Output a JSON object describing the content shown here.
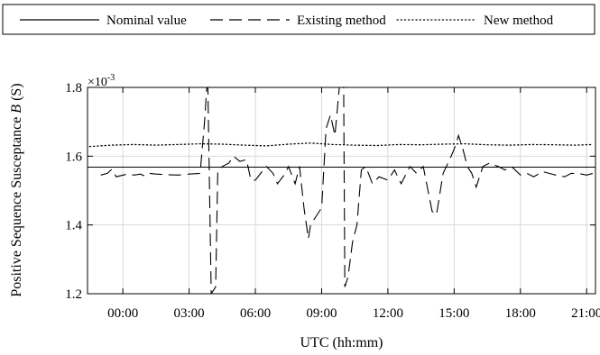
{
  "chart_data": {
    "type": "line",
    "xlabel": "UTC (hh:mm)",
    "ylabel": "Positive Sequence Susceptance B (S)",
    "ylabel_prefix": "Positive Sequence Susceptance ",
    "ylabel_var": "B",
    "ylabel_suffix": " (S)",
    "y_multiplier": "×10",
    "y_multiplier_exp": "-3",
    "xlim": [
      -1.6,
      21.4
    ],
    "ylim": [
      1.2,
      1.8
    ],
    "x_ticks": [
      0,
      3,
      6,
      9,
      12,
      15,
      18,
      21
    ],
    "x_tick_labels": [
      "00:00",
      "03:00",
      "06:00",
      "09:00",
      "12:00",
      "15:00",
      "18:00",
      "21:00"
    ],
    "y_ticks": [
      1.2,
      1.4,
      1.6,
      1.8
    ],
    "y_tick_labels": [
      "1.2",
      "1.4",
      "1.6",
      "1.8"
    ],
    "grid": true,
    "legend_placement": "top",
    "series": [
      {
        "name": "Nominal value",
        "style": "solid",
        "color": "#000000",
        "x": [
          -1.6,
          21.4
        ],
        "y": [
          1.568,
          1.568
        ]
      },
      {
        "name": "Existing method",
        "style": "dashed",
        "color": "#000000",
        "x": [
          -1.0,
          -0.7,
          -0.5,
          -0.3,
          0.2,
          0.5,
          0.8,
          1.0,
          1.2,
          1.5,
          2.0,
          2.5,
          3.0,
          3.5,
          3.7,
          3.8,
          3.85,
          4.0,
          4.2,
          4.3,
          4.5,
          4.8,
          5.0,
          5.3,
          5.6,
          5.8,
          6.0,
          6.3,
          6.5,
          6.8,
          7.0,
          7.3,
          7.5,
          7.8,
          8.0,
          8.2,
          8.4,
          8.5,
          8.7,
          9.0,
          9.2,
          9.4,
          9.6,
          9.8,
          10.0,
          10.05,
          10.1,
          10.2,
          10.4,
          10.6,
          10.8,
          11.0,
          11.3,
          11.6,
          12.0,
          12.3,
          12.6,
          13.0,
          13.3,
          13.6,
          14.0,
          14.2,
          14.5,
          14.8,
          15.0,
          15.2,
          15.4,
          15.6,
          15.8,
          16.0,
          16.3,
          16.6,
          17.0,
          17.3,
          17.6,
          18.0,
          18.3,
          18.6,
          19.0,
          19.3,
          19.6,
          20.0,
          20.3,
          20.6,
          21.0,
          21.3
        ],
        "y": [
          1.545,
          1.55,
          1.562,
          1.54,
          1.548,
          1.545,
          1.548,
          1.542,
          1.55,
          1.548,
          1.546,
          1.545,
          1.548,
          1.55,
          1.7,
          1.8,
          1.8,
          1.2,
          1.22,
          1.56,
          1.57,
          1.58,
          1.6,
          1.585,
          1.59,
          1.53,
          1.53,
          1.555,
          1.57,
          1.55,
          1.52,
          1.545,
          1.57,
          1.52,
          1.57,
          1.45,
          1.36,
          1.4,
          1.42,
          1.45,
          1.68,
          1.72,
          1.66,
          1.8,
          1.8,
          1.22,
          1.23,
          1.25,
          1.35,
          1.4,
          1.56,
          1.57,
          1.52,
          1.54,
          1.53,
          1.56,
          1.52,
          1.57,
          1.55,
          1.57,
          1.44,
          1.43,
          1.55,
          1.59,
          1.62,
          1.66,
          1.62,
          1.57,
          1.55,
          1.51,
          1.57,
          1.58,
          1.57,
          1.56,
          1.57,
          1.545,
          1.55,
          1.54,
          1.555,
          1.55,
          1.545,
          1.54,
          1.55,
          1.55,
          1.545,
          1.55
        ]
      },
      {
        "name": "New method",
        "style": "dotted",
        "color": "#000000",
        "x": [
          -1.5,
          -0.5,
          0.5,
          1.5,
          2.5,
          3.5,
          4.5,
          5.5,
          6.5,
          7.5,
          8.5,
          9.5,
          10.5,
          11.5,
          12.5,
          13.5,
          14.5,
          15.5,
          16.5,
          17.5,
          18.5,
          19.5,
          20.5,
          21.3
        ],
        "y": [
          1.628,
          1.632,
          1.634,
          1.632,
          1.634,
          1.636,
          1.635,
          1.632,
          1.63,
          1.635,
          1.638,
          1.634,
          1.632,
          1.631,
          1.634,
          1.633,
          1.635,
          1.636,
          1.633,
          1.632,
          1.634,
          1.633,
          1.632,
          1.634
        ]
      }
    ]
  }
}
